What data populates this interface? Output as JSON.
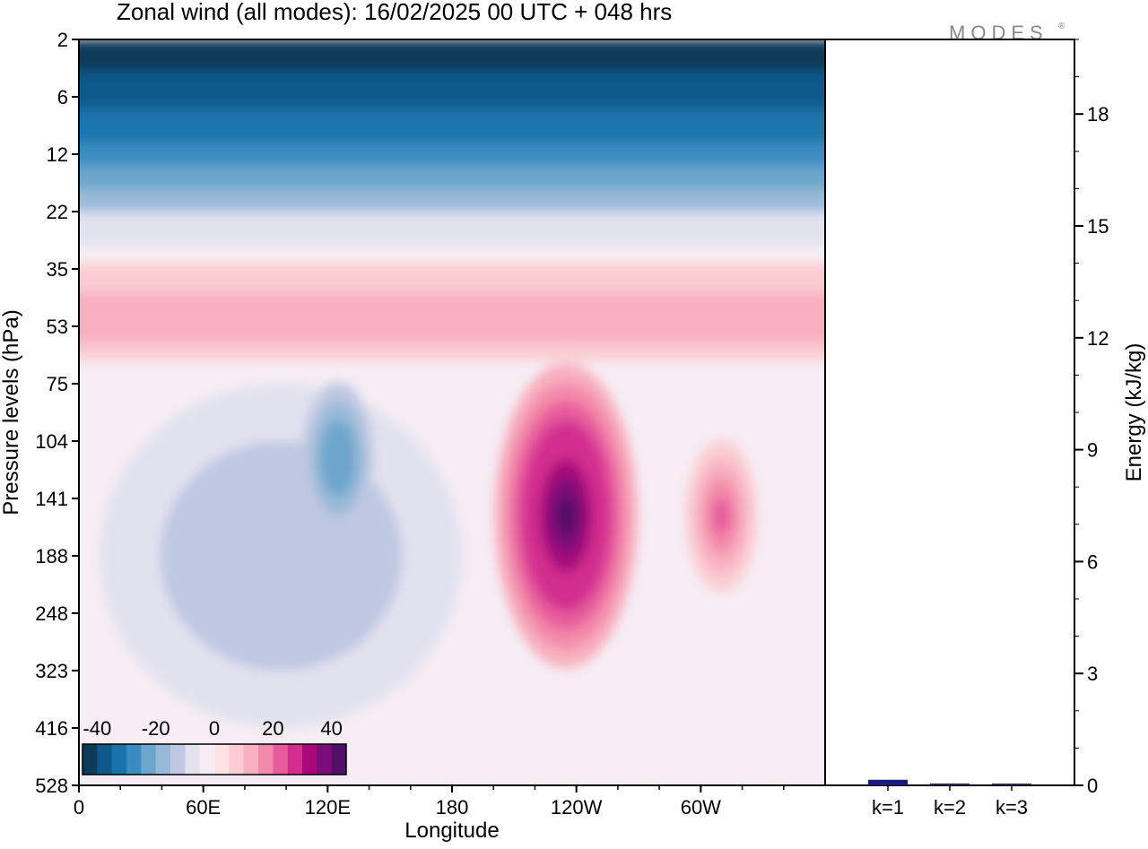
{
  "title": "Zonal wind (all modes):  16/02/2025  00 UTC  + 048 hrs",
  "brand": "MODES",
  "brand_mark": "®",
  "colors": {
    "frame": "#000000",
    "energy_bar": "#1a1a80",
    "energy_bar_small": "#2a2a50"
  },
  "chart_data": [
    {
      "type": "heatmap",
      "title": "Zonal wind (all modes):  16/02/2025  00 UTC  + 048 hrs",
      "xlabel": "Longitude",
      "ylabel": "Pressure levels (hPa)",
      "x_ticks": [
        "0",
        "60E",
        "120E",
        "180",
        "120W",
        "60W"
      ],
      "x_range_deg": [
        0,
        360
      ],
      "y_ticks": [
        "2",
        "6",
        "12",
        "22",
        "35",
        "53",
        "75",
        "104",
        "141",
        "188",
        "248",
        "323",
        "416",
        "528"
      ],
      "y_scale": "model levels, top to bottom",
      "colorbar": {
        "labels": [
          "-40",
          "-20",
          "0",
          "20",
          "40"
        ],
        "range": [
          -45,
          45
        ],
        "step": 5,
        "colors": [
          "#0d3a58",
          "#0d5a8a",
          "#1a74ac",
          "#3a8cc0",
          "#6ca6cc",
          "#98bad8",
          "#bfc8e2",
          "#e2e2ef",
          "#f6eef4",
          "#fde2e2",
          "#fbcdd2",
          "#f8b0bf",
          "#f38aaa",
          "#e75c9c",
          "#d22d8f",
          "#a8087a",
          "#7a0d7a",
          "#501063"
        ]
      },
      "features": [
        {
          "name": "stratospheric easterlies",
          "lon_range": [
            0,
            360
          ],
          "levels": [
            "2",
            "12"
          ],
          "value": -40
        },
        {
          "name": "upper westerly band",
          "lon_range": [
            0,
            360
          ],
          "levels": [
            "22",
            "53"
          ],
          "value": 10
        },
        {
          "name": "easterly region",
          "lon_range": [
            10,
            185
          ],
          "levels": [
            "75",
            "416"
          ],
          "value": -15
        },
        {
          "name": "easterly maximum",
          "lon": 125,
          "level": "104",
          "value": -25
        },
        {
          "name": "westerly jet core",
          "lon": 235,
          "level": "141",
          "value": 40
        },
        {
          "name": "secondary westerly jet",
          "lon": 310,
          "level": "141",
          "value": 20
        }
      ]
    },
    {
      "type": "bar",
      "categories": [
        "k=1",
        "k=2",
        "k=3"
      ],
      "values": [
        0.15,
        0.05,
        0.03
      ],
      "ylabel": "Energy (kJ/kg)",
      "ylim": [
        0,
        20
      ],
      "y_ticks": [
        "0",
        "3",
        "6",
        "9",
        "12",
        "15",
        "18"
      ]
    }
  ]
}
